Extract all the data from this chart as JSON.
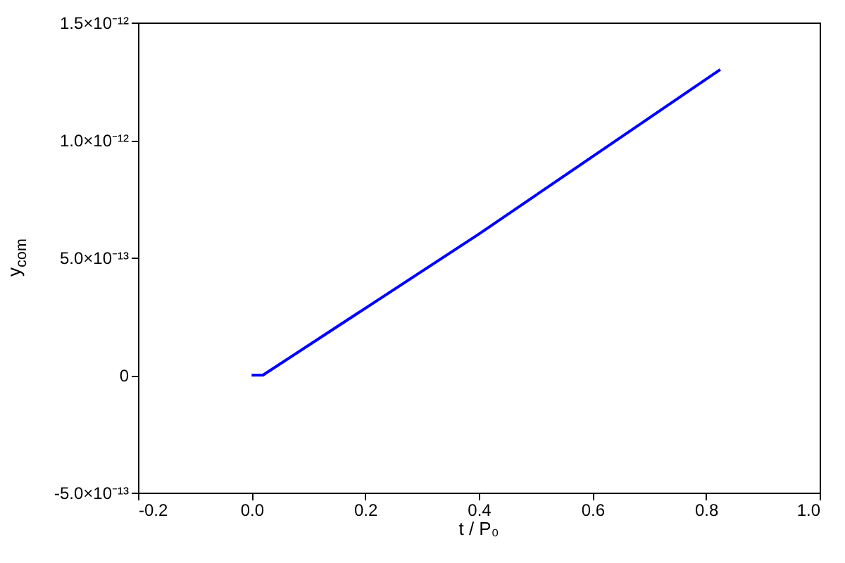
{
  "chart_data": {
    "type": "line",
    "xlabel": "t / P₀",
    "ylabel": "y$_{com}$",
    "x": [
      0.0,
      0.02,
      0.4,
      0.825
    ],
    "series": [
      {
        "color": "#0000ff",
        "values": [
          0,
          0,
          6e-13,
          1.3e-12
        ]
      }
    ],
    "xlim": [
      -0.2,
      1.0
    ],
    "xticks": [
      {
        "value": -0.2,
        "label": "-0.2"
      },
      {
        "value": 0,
        "label": "0.0"
      },
      0.2,
      0.4,
      0.6,
      0.8,
      {
        "value": 1.0,
        "label": "1.0"
      }
    ],
    "ylim": [
      -5e-13,
      1.5e-12
    ],
    "yticks": [
      {
        "value": -5e-13,
        "label": "-5.0×10⁻¹³"
      },
      0,
      {
        "value": 5e-13,
        "label": "5.0×10⁻¹³"
      },
      {
        "value": 1e-12,
        "label": "1.0×10⁻¹²"
      },
      {
        "value": 1.5e-12,
        "label": "1.5×10⁻¹²"
      }
    ],
    "grid": false
  }
}
